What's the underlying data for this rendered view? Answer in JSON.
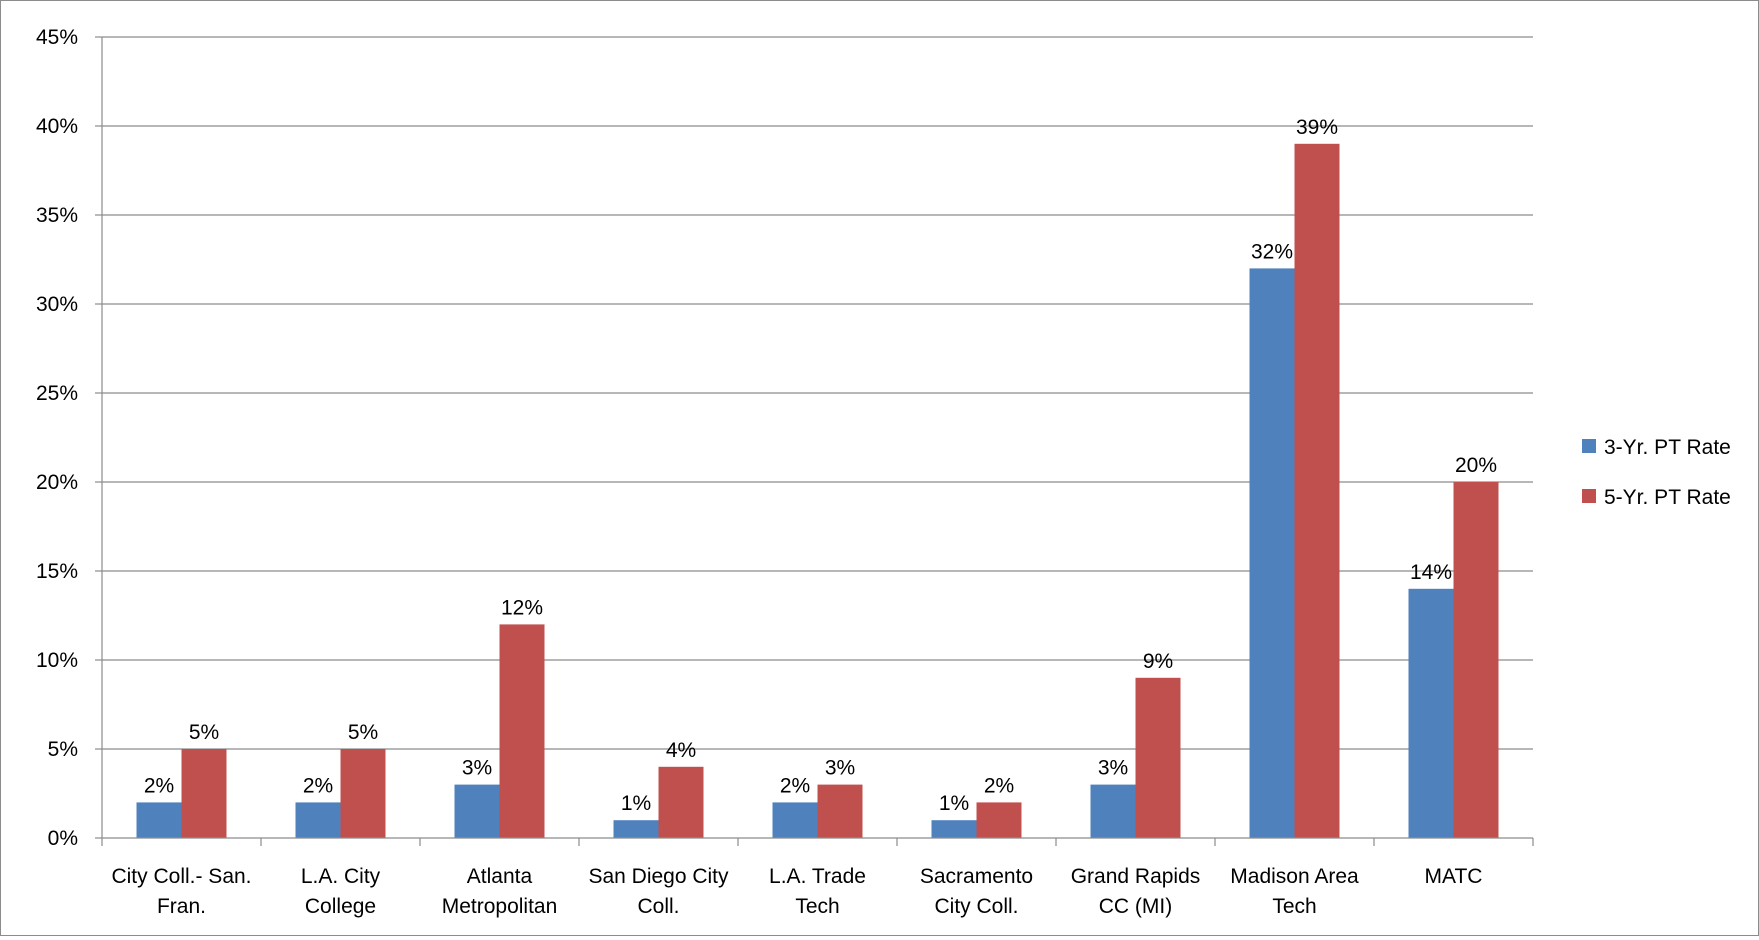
{
  "chart_data": {
    "type": "bar",
    "categories": [
      [
        "City Coll.- San.",
        "Fran."
      ],
      [
        "L.A. City",
        "College"
      ],
      [
        "Atlanta",
        "Metropolitan"
      ],
      [
        "San Diego City",
        "Coll."
      ],
      [
        "L.A. Trade",
        "Tech"
      ],
      [
        "Sacramento",
        "City Coll."
      ],
      [
        "Grand Rapids",
        "CC (MI)"
      ],
      [
        "Madison Area",
        "Tech"
      ],
      [
        "MATC"
      ]
    ],
    "series": [
      {
        "name": "3-Yr. PT Rate",
        "color": "#4f81bd",
        "values": [
          2,
          2,
          3,
          1,
          2,
          1,
          3,
          32,
          14
        ],
        "labels": [
          "2%",
          "2%",
          "3%",
          "1%",
          "2%",
          "1%",
          "3%",
          "32%",
          "14%"
        ]
      },
      {
        "name": "5-Yr. PT Rate",
        "color": "#c0504d",
        "values": [
          5,
          5,
          12,
          4,
          3,
          2,
          9,
          39,
          20
        ],
        "labels": [
          "5%",
          "5%",
          "12%",
          "4%",
          "3%",
          "2%",
          "9%",
          "39%",
          "20%"
        ]
      }
    ],
    "y_ticks": [
      "0%",
      "5%",
      "10%",
      "15%",
      "20%",
      "25%",
      "30%",
      "35%",
      "40%",
      "45%"
    ],
    "ylim": [
      0,
      45
    ],
    "grid": true,
    "legend_position": "right"
  }
}
